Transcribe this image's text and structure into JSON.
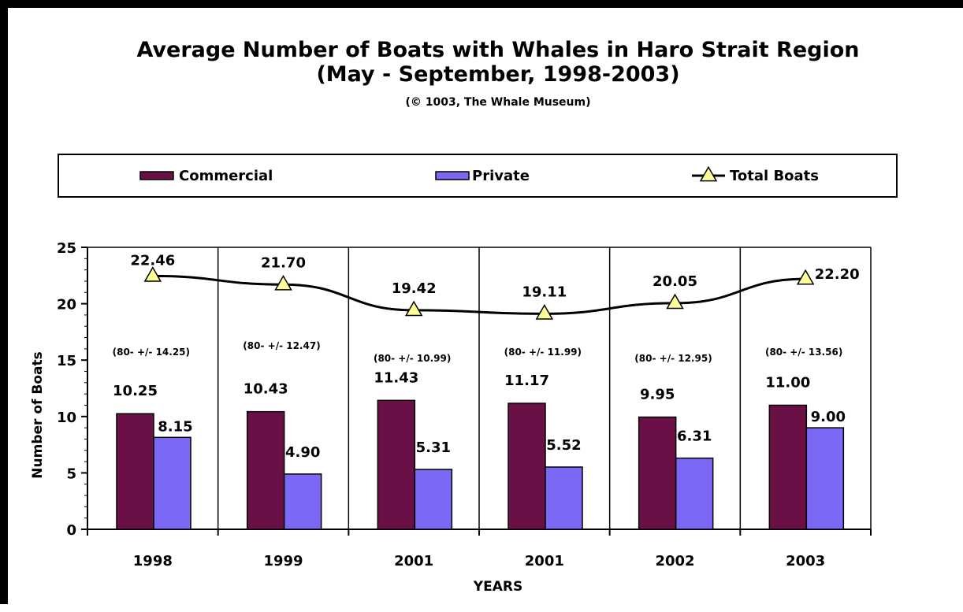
{
  "chart_data": {
    "type": "bar",
    "title_line1": "Average Number of Boats with Whales in Haro Strait Region",
    "title_line2": "(May - September, 1998-2003)",
    "subtitle": "(© 1003, The Whale Museum)",
    "xlabel": "YEARS",
    "ylabel": "Number of Boats",
    "ylim": [
      0,
      25
    ],
    "yticks": [
      0,
      5,
      10,
      15,
      20,
      25
    ],
    "categories": [
      "1998",
      "1999",
      "2001",
      "2001",
      "2002",
      "2003"
    ],
    "series": [
      {
        "name": "Commercial",
        "kind": "bar",
        "color": "#6b0f47",
        "values": [
          10.25,
          10.43,
          11.43,
          11.17,
          9.95,
          11.0
        ],
        "labels": [
          "10.25",
          "10.43",
          "11.43",
          "11.17",
          "9.95",
          "11.00"
        ]
      },
      {
        "name": "Private",
        "kind": "bar",
        "color": "#7b68f5",
        "values": [
          8.15,
          4.9,
          5.31,
          5.52,
          6.31,
          9.0
        ],
        "labels": [
          "8.15",
          "4.90",
          "5.31",
          "5.52",
          "6.31",
          "9.00"
        ]
      },
      {
        "name": "Total Boats",
        "kind": "line",
        "color": "#000000",
        "marker": "triangle",
        "marker_color": "#ffff99",
        "values": [
          22.46,
          21.7,
          19.42,
          19.11,
          20.05,
          22.2
        ],
        "labels": [
          "22.46",
          "21.70",
          "19.42",
          "19.11",
          "20.05",
          "22.20"
        ]
      }
    ],
    "annotations": [
      "(80-  +/-  14.25)",
      "(80-  +/-  12.47)",
      "(80-  +/-  10.99)",
      "(80-  +/-  11.99)",
      "(80-  +/-  12.95)",
      "(80-  +/-  13.56)"
    ],
    "grid": false,
    "category_dividers": true,
    "legend_position": "top"
  }
}
